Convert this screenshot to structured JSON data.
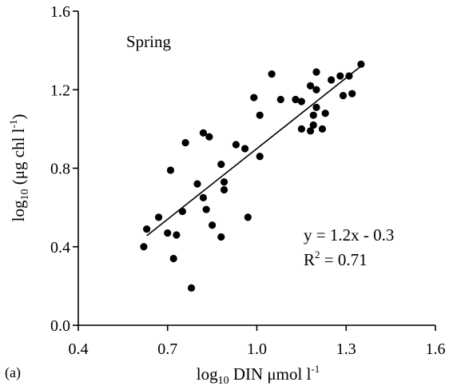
{
  "panel_label": "(a)",
  "chart_data": {
    "type": "scatter",
    "title": "Spring",
    "xlabel": {
      "pre": "log",
      "sub": "10",
      "post": " DIN μmol l",
      "sup": "-1"
    },
    "ylabel": {
      "pre": "log",
      "sub": "10",
      "post": " (μg chl l",
      "sup": "-1",
      "tail": ")"
    },
    "xlim": [
      0.4,
      1.6
    ],
    "ylim": [
      0.0,
      1.6
    ],
    "xticks": [
      "0.4",
      "0.7",
      "1.0",
      "1.3",
      "1.6"
    ],
    "yticks": [
      "0.0",
      "0.4",
      "0.8",
      "1.2",
      "1.6"
    ],
    "grid": false,
    "equation": "y = 1.2x - 0.3",
    "r2": {
      "pre": "R",
      "sup": "2",
      "post": " = 0.71"
    },
    "trendline": {
      "slope": 1.2,
      "intercept": -0.3,
      "x": [
        0.63,
        1.35
      ]
    },
    "points": [
      [
        0.62,
        0.4
      ],
      [
        0.63,
        0.49
      ],
      [
        0.67,
        0.55
      ],
      [
        0.7,
        0.47
      ],
      [
        0.71,
        0.79
      ],
      [
        0.72,
        0.34
      ],
      [
        0.73,
        0.46
      ],
      [
        0.75,
        0.58
      ],
      [
        0.76,
        0.93
      ],
      [
        0.78,
        0.19
      ],
      [
        0.8,
        0.72
      ],
      [
        0.82,
        0.98
      ],
      [
        0.82,
        0.65
      ],
      [
        0.83,
        0.59
      ],
      [
        0.84,
        0.96
      ],
      [
        0.85,
        0.51
      ],
      [
        0.88,
        0.82
      ],
      [
        0.88,
        0.45
      ],
      [
        0.89,
        0.73
      ],
      [
        0.89,
        0.69
      ],
      [
        0.93,
        0.92
      ],
      [
        0.96,
        0.9
      ],
      [
        0.97,
        0.55
      ],
      [
        0.99,
        1.16
      ],
      [
        1.01,
        0.86
      ],
      [
        1.01,
        1.07
      ],
      [
        1.05,
        1.28
      ],
      [
        1.08,
        1.15
      ],
      [
        1.13,
        1.15
      ],
      [
        1.15,
        1.0
      ],
      [
        1.15,
        1.14
      ],
      [
        1.18,
        0.99
      ],
      [
        1.18,
        1.22
      ],
      [
        1.19,
        1.07
      ],
      [
        1.19,
        1.02
      ],
      [
        1.2,
        1.29
      ],
      [
        1.2,
        1.2
      ],
      [
        1.2,
        1.11
      ],
      [
        1.22,
        1.0
      ],
      [
        1.23,
        1.08
      ],
      [
        1.25,
        1.25
      ],
      [
        1.28,
        1.27
      ],
      [
        1.29,
        1.17
      ],
      [
        1.31,
        1.27
      ],
      [
        1.32,
        1.18
      ],
      [
        1.35,
        1.33
      ]
    ]
  }
}
